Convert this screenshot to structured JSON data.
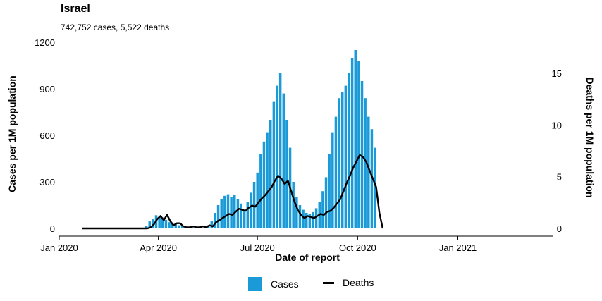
{
  "title": "Israel",
  "subtitle": "742,752 cases, 5,522 deaths",
  "legend": {
    "cases": "Cases",
    "deaths": "Deaths"
  },
  "colors": {
    "cases": "#1a9ad7",
    "deaths": "#000000"
  },
  "chart_data": {
    "type": "bar",
    "title": "Israel",
    "subtitle": "742,752 cases, 5,522 deaths",
    "xlabel": "Date of report",
    "ylabel": "Cases per 1M population",
    "y2label": "Deaths per 1M population",
    "xlim": [
      "2020-01-01",
      "2021-03-20"
    ],
    "ylim": [
      0,
      1200
    ],
    "y2lim": [
      0,
      18
    ],
    "xticks": [
      "2020-01-01",
      "2020-04-01",
      "2020-07-01",
      "2020-10-01",
      "2021-01-01"
    ],
    "xticklabels": [
      "Jan 2020",
      "Apr 2020",
      "Jul 2020",
      "Oct 2020",
      "Jan 2021"
    ],
    "yticks": [
      0,
      300,
      600,
      900,
      1200
    ],
    "y2ticks": [
      0,
      5,
      10,
      15
    ],
    "legend_position": "bottom",
    "grid": false,
    "series": [
      {
        "name": "Cases",
        "type": "bar",
        "axis": "left",
        "start_date": "2020-03-21",
        "step_days": 3,
        "values": [
          15,
          45,
          60,
          85,
          75,
          70,
          55,
          40,
          30,
          25,
          20,
          15,
          10,
          10,
          8,
          5,
          5,
          5,
          10,
          20,
          50,
          100,
          150,
          190,
          210,
          220,
          200,
          215,
          190,
          160,
          120,
          170,
          230,
          300,
          360,
          480,
          560,
          620,
          700,
          820,
          920,
          1000,
          870,
          700,
          520,
          300,
          200,
          150,
          120,
          100,
          95,
          105,
          130,
          170,
          240,
          330,
          480,
          620,
          720,
          840,
          880,
          920,
          1000,
          1100,
          1150,
          1080,
          950,
          840,
          720,
          640,
          520
        ]
      },
      {
        "name": "Deaths",
        "type": "line",
        "axis": "right",
        "start_date": "2020-01-22",
        "step_days": 3,
        "values": [
          0,
          0,
          0,
          0,
          0,
          0,
          0,
          0,
          0,
          0,
          0,
          0,
          0,
          0,
          0,
          0,
          0,
          0,
          0,
          0,
          0,
          0.1,
          0.4,
          0.9,
          1.2,
          0.8,
          1.3,
          0.7,
          0.3,
          0.5,
          0.5,
          0.2,
          0.1,
          0.1,
          0.2,
          0.1,
          0.1,
          0.2,
          0.1,
          0.3,
          0.2,
          0.6,
          0.8,
          1.0,
          1.2,
          1.4,
          1.3,
          1.6,
          1.9,
          1.8,
          1.7,
          2.0,
          2.2,
          2.1,
          2.5,
          2.9,
          3.2,
          3.6,
          4.0,
          4.6,
          5.1,
          4.8,
          4.3,
          4.6,
          3.6,
          2.6,
          1.8,
          1.3,
          1.0,
          1.2,
          1.1,
          1.0,
          1.2,
          1.4,
          1.3,
          1.6,
          1.7,
          2.0,
          2.4,
          2.8,
          3.6,
          4.4,
          5.1,
          5.9,
          6.5,
          7.1,
          6.9,
          6.4,
          5.6,
          4.8,
          4.0,
          1.5,
          0
        ]
      }
    ]
  }
}
